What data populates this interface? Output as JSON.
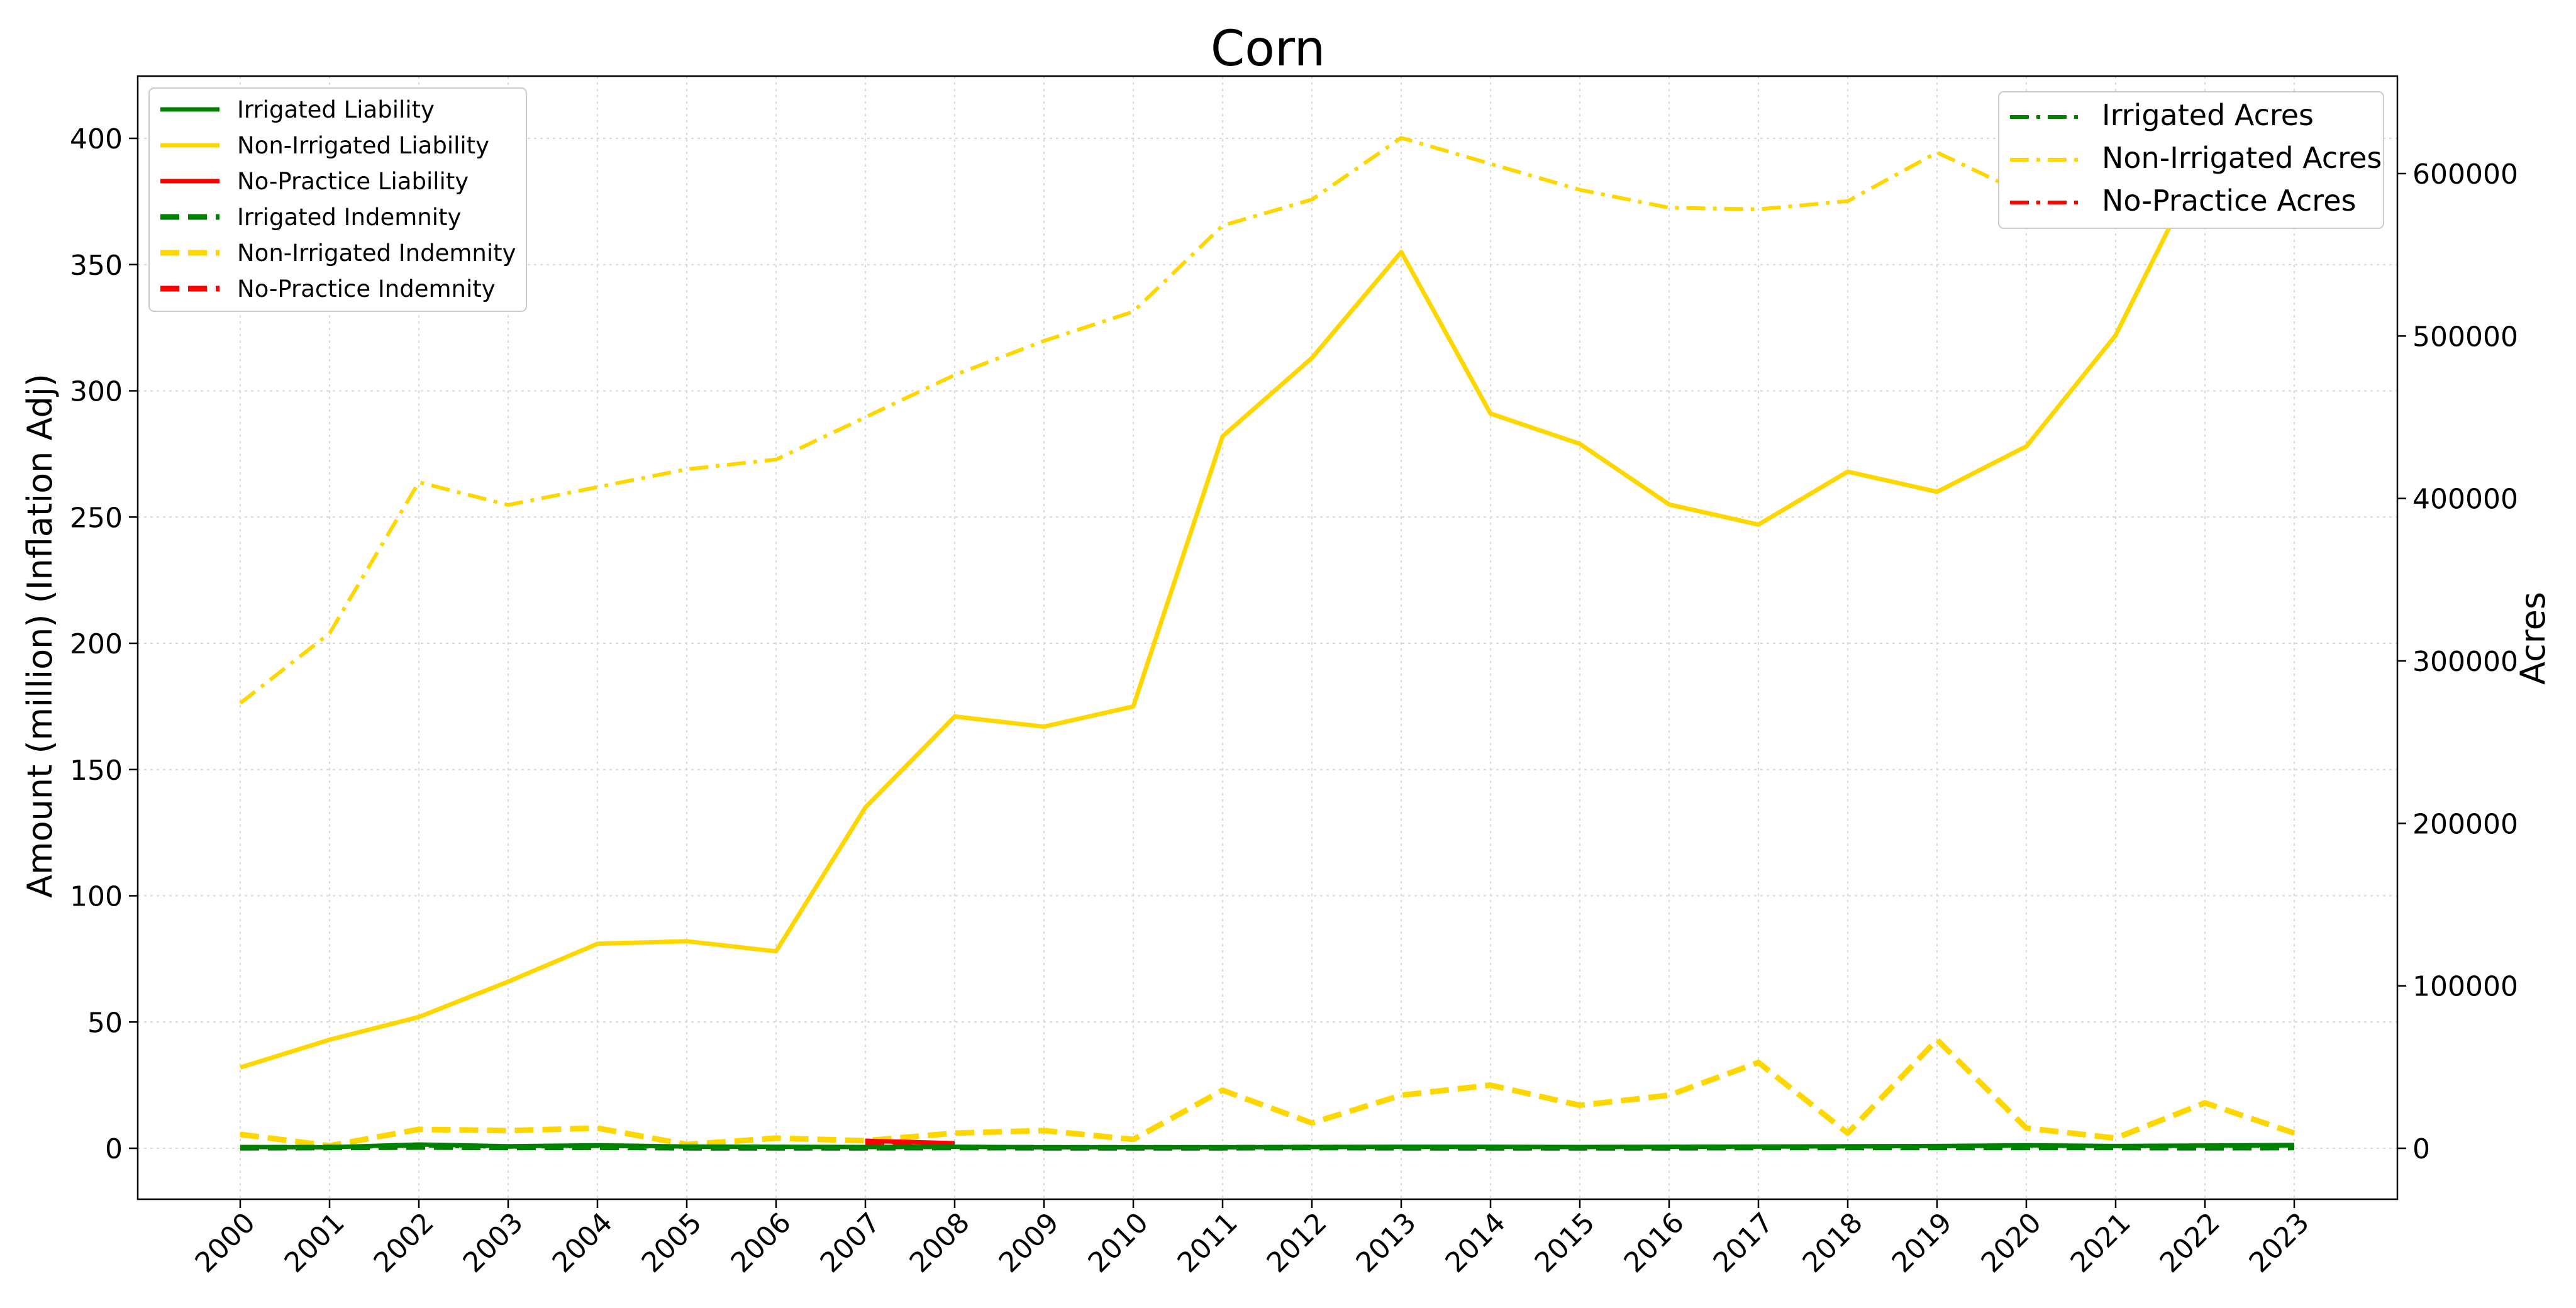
{
  "chart_data": {
    "type": "line",
    "title": "Corn",
    "ylabel": "Amount (million) (Inflation Adj)",
    "y2label": "Acres",
    "grid": true,
    "legend_left_placement": "top-left",
    "legend_right_placement": "top-right",
    "ylim": [
      -20,
      420
    ],
    "y2lim": [
      -31000,
      651000
    ],
    "x": [
      "2000",
      "2001",
      "2002",
      "2003",
      "2004",
      "2005",
      "2006",
      "2007",
      "2008",
      "2009",
      "2010",
      "2011",
      "2012",
      "2013",
      "2014",
      "2015",
      "2016",
      "2017",
      "2018",
      "2019",
      "2020",
      "2021",
      "2022",
      "2023"
    ],
    "yticks": [
      0,
      50,
      100,
      150,
      200,
      250,
      300,
      350,
      400
    ],
    "y2ticks": [
      0,
      100000,
      200000,
      300000,
      400000,
      500000,
      600000
    ],
    "series": [
      {
        "name": "Irrigated Liability",
        "axis": "left",
        "color": "#008000",
        "style": "solid",
        "values": [
          0.5,
          0.4,
          1.5,
          0.8,
          1.2,
          0.7,
          0.6,
          0.5,
          0.6,
          0.4,
          0.4,
          0.4,
          0.5,
          0.6,
          0.6,
          0.5,
          0.6,
          0.7,
          0.8,
          0.9,
          1.2,
          0.9,
          1.1,
          1.3
        ]
      },
      {
        "name": "Non-Irrigated Liability",
        "axis": "left",
        "color": "#FFD700",
        "style": "solid",
        "values": [
          32,
          43,
          52,
          66,
          81,
          82,
          78,
          135,
          171,
          167,
          175,
          282,
          313,
          355,
          291,
          279,
          255,
          247,
          268,
          260,
          278,
          322,
          393,
          410
        ]
      },
      {
        "name": "No-Practice Liability",
        "axis": "left",
        "color": "#FF0000",
        "style": "solid",
        "x": [
          "2007",
          "2008"
        ],
        "values": [
          3,
          2
        ]
      },
      {
        "name": "Irrigated Indemnity",
        "axis": "left",
        "color": "#008000",
        "style": "dashed",
        "values": [
          0.2,
          0.3,
          0.5,
          0.3,
          0.4,
          0.2,
          0.2,
          0.2,
          0.3,
          0.2,
          0.2,
          0.2,
          0.3,
          0.2,
          0.2,
          0.2,
          0.2,
          0.3,
          0.3,
          0.3,
          0.3,
          0.3,
          0.2,
          0.3
        ]
      },
      {
        "name": "Non-Irrigated Indemnity",
        "axis": "left",
        "color": "#FFD700",
        "style": "dashed",
        "values": [
          5.5,
          1,
          7.5,
          7,
          8,
          1.5,
          4,
          3,
          6,
          7,
          3.5,
          23,
          10,
          21,
          25,
          17,
          21,
          34,
          6,
          43,
          8,
          4,
          18,
          6
        ]
      },
      {
        "name": "No-Practice Indemnity",
        "axis": "left",
        "color": "#FF0000",
        "style": "dashed",
        "x": [
          "2007",
          "2008"
        ],
        "values": [
          2,
          1.5
        ]
      },
      {
        "name": "Irrigated Acres",
        "axis": "right",
        "color": "#008000",
        "style": "dashdot",
        "values": [
          600,
          700,
          1500,
          900,
          1300,
          800,
          700,
          600,
          700,
          500,
          500,
          500,
          600,
          700,
          700,
          600,
          700,
          900,
          1000,
          1100,
          1500,
          1200,
          1400,
          1600
        ]
      },
      {
        "name": "Non-Irrigated Acres",
        "axis": "right",
        "color": "#FFD700",
        "style": "dashdot",
        "values": [
          274000,
          317000,
          410000,
          396000,
          407000,
          418000,
          424000,
          450000,
          476000,
          497000,
          515000,
          568000,
          584000,
          622000,
          606000,
          590000,
          579000,
          578000,
          583000,
          613000,
          587000,
          608000,
          628000,
          630000
        ]
      },
      {
        "name": "No-Practice Acres",
        "axis": "right",
        "color": "#FF0000",
        "style": "dashdot",
        "x": [
          "2007",
          "2008"
        ],
        "values": [
          4000,
          3000
        ]
      }
    ]
  }
}
